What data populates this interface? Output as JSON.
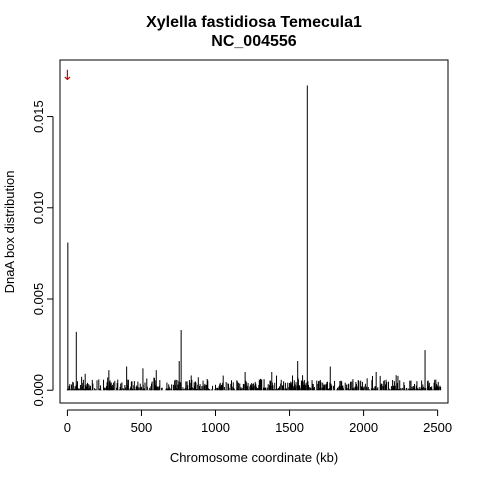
{
  "chart_data": {
    "type": "bar",
    "title": "Xylella fastidiosa Temecula1",
    "subtitle": "NC_004556",
    "xlabel": "Chromosome coordinate (kb)",
    "ylabel": "DnaA box distribution",
    "xlim": [
      -50,
      2570
    ],
    "ylim": [
      -0.0007,
      0.0181
    ],
    "x_ticks": [
      0,
      500,
      1000,
      1500,
      2000,
      2500
    ],
    "y_ticks": [
      0.0,
      0.005,
      0.01,
      0.015
    ],
    "y_tick_labels": [
      "0.000",
      "0.005",
      "0.010",
      "0.015"
    ],
    "grid": false,
    "marker": {
      "symbol": "↓",
      "color": "#cc0000",
      "x": 0,
      "y": 0.017
    },
    "peaks": [
      {
        "x": 3,
        "y": 0.0081
      },
      {
        "x": 60,
        "y": 0.0032
      },
      {
        "x": 768,
        "y": 0.0033
      },
      {
        "x": 755,
        "y": 0.0016
      },
      {
        "x": 1555,
        "y": 0.0016
      },
      {
        "x": 1620,
        "y": 0.0167
      },
      {
        "x": 1775,
        "y": 0.0013
      },
      {
        "x": 2415,
        "y": 0.0022
      },
      {
        "x": 2085,
        "y": 0.001
      },
      {
        "x": 400,
        "y": 0.0013
      },
      {
        "x": 510,
        "y": 0.0012
      },
      {
        "x": 280,
        "y": 0.0011
      },
      {
        "x": 1200,
        "y": 0.001
      },
      {
        "x": 600,
        "y": 0.0011
      },
      {
        "x": 120,
        "y": 0.0009
      },
      {
        "x": 1380,
        "y": 0.001
      }
    ],
    "baseline": {
      "x_start": 0,
      "x_end": 2520,
      "step": 4,
      "max_height": 0.0006,
      "seed": 17
    }
  }
}
